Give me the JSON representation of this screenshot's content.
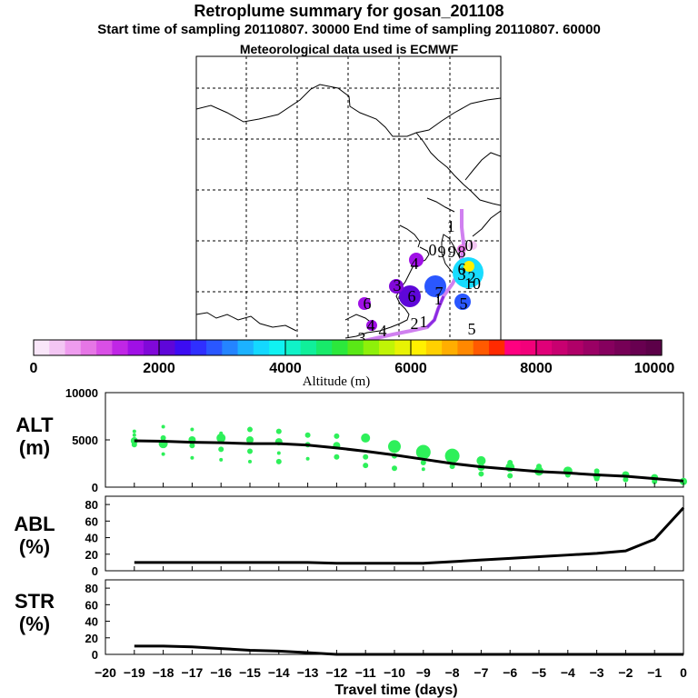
{
  "header": {
    "title": "Retroplume summary for gosan_201108",
    "line2": "Start time of sampling 20110807. 30000     End time of sampling 20110807. 60000",
    "line3": "Meteorological data used is ECMWF"
  },
  "map": {
    "cluster_labels": [
      {
        "text": "1",
        "color": "#000000"
      },
      {
        "text": "0",
        "color": "#000000"
      },
      {
        "text": "9",
        "color": "#000000"
      },
      {
        "text": "0",
        "color": "#000000"
      },
      {
        "text": "9",
        "color": "#000000"
      },
      {
        "text": "8",
        "color": "#000000"
      },
      {
        "text": "4",
        "color": "#000000"
      },
      {
        "text": "6",
        "color": "#000000"
      },
      {
        "text": "3",
        "color": "#000000"
      },
      {
        "text": "2",
        "color": "#000000"
      },
      {
        "text": "10",
        "color": "#000000"
      },
      {
        "text": "3",
        "color": "#000000"
      },
      {
        "text": "6",
        "color": "#000000"
      },
      {
        "text": "7",
        "color": "#000000"
      },
      {
        "text": "1",
        "color": "#000000"
      },
      {
        "text": "5",
        "color": "#000000"
      },
      {
        "text": "6",
        "color": "#000000"
      },
      {
        "text": "4",
        "color": "#000000"
      },
      {
        "text": "2",
        "color": "#000000"
      },
      {
        "text": "1",
        "color": "#000000"
      },
      {
        "text": "5",
        "color": "#000000"
      },
      {
        "text": "4",
        "color": "#000000"
      },
      {
        "text": "3",
        "color": "#000000"
      }
    ]
  },
  "colorbar": {
    "label": "Altitude (m)",
    "ticks": [
      "0",
      "2000",
      "4000",
      "6000",
      "8000",
      "10000"
    ],
    "colors": [
      "#f9e6f9",
      "#f3c6f3",
      "#ee9cee",
      "#e676e6",
      "#d94fe6",
      "#c026e6",
      "#a010e6",
      "#8008d9",
      "#5e06d9",
      "#3c0cf2",
      "#2f2fff",
      "#2a57ff",
      "#2484ff",
      "#1cb2ff",
      "#14d8ff",
      "#10f2f2",
      "#10f2c8",
      "#10ef9a",
      "#18ea6a",
      "#2ce83c",
      "#5ae816",
      "#8ef00a",
      "#c0f406",
      "#e8f204",
      "#fff000",
      "#ffd000",
      "#ffae00",
      "#ff8800",
      "#ff5a00",
      "#ff2a00",
      "#ff0080",
      "#f2007a",
      "#e00078",
      "#c80070",
      "#b00068",
      "#9a0064",
      "#86005e",
      "#760056",
      "#680050",
      "#5c0048"
    ]
  },
  "chart_data": [
    {
      "type": "scatter",
      "panel": "ALT",
      "ylabel": "ALT (m)",
      "xlabel": "Travel time (days)",
      "ylim": [
        0,
        10000
      ],
      "yticks": [
        "0",
        "5000",
        "10000"
      ],
      "xticks": [
        "−20",
        "−19",
        "−18",
        "−17",
        "−16",
        "−15",
        "−14",
        "−13",
        "−12",
        "−11",
        "−10",
        "−9",
        "−8",
        "−7",
        "−6",
        "−5",
        "−4",
        "−3",
        "−2",
        "−1",
        "0"
      ],
      "line_x": [
        -19,
        -18,
        -17,
        -16,
        -15,
        -14,
        -13,
        -12,
        -11,
        -10,
        -9,
        -8,
        -7,
        -6,
        -5,
        -4,
        -3,
        -2,
        -1,
        0
      ],
      "line_y": [
        4900,
        4850,
        4750,
        4700,
        4600,
        4600,
        4450,
        4150,
        3800,
        3400,
        2950,
        2500,
        2150,
        1900,
        1650,
        1500,
        1300,
        1150,
        900,
        650
      ],
      "points": [
        {
          "x": -19,
          "y": 5500,
          "s": 2
        },
        {
          "x": -19,
          "y": 4900,
          "s": 4
        },
        {
          "x": -19,
          "y": 4500,
          "s": 3
        },
        {
          "x": -19,
          "y": 5900,
          "s": 2
        },
        {
          "x": -18,
          "y": 6400,
          "s": 2
        },
        {
          "x": -18,
          "y": 5200,
          "s": 3
        },
        {
          "x": -18,
          "y": 4600,
          "s": 5
        },
        {
          "x": -18,
          "y": 3500,
          "s": 2
        },
        {
          "x": -17,
          "y": 6100,
          "s": 2
        },
        {
          "x": -17,
          "y": 5000,
          "s": 4
        },
        {
          "x": -17,
          "y": 4400,
          "s": 3
        },
        {
          "x": -17,
          "y": 3100,
          "s": 2
        },
        {
          "x": -16,
          "y": 5700,
          "s": 2
        },
        {
          "x": -16,
          "y": 5200,
          "s": 5
        },
        {
          "x": -16,
          "y": 4000,
          "s": 3
        },
        {
          "x": -16,
          "y": 2900,
          "s": 2
        },
        {
          "x": -15,
          "y": 6100,
          "s": 3
        },
        {
          "x": -15,
          "y": 5000,
          "s": 4
        },
        {
          "x": -15,
          "y": 3800,
          "s": 3
        },
        {
          "x": -15,
          "y": 2700,
          "s": 2
        },
        {
          "x": -14,
          "y": 5900,
          "s": 3
        },
        {
          "x": -14,
          "y": 4800,
          "s": 4
        },
        {
          "x": -14,
          "y": 3600,
          "s": 2
        },
        {
          "x": -14,
          "y": 2700,
          "s": 3
        },
        {
          "x": -13,
          "y": 5500,
          "s": 3
        },
        {
          "x": -13,
          "y": 4500,
          "s": 3
        },
        {
          "x": -13,
          "y": 3000,
          "s": 2
        },
        {
          "x": -12,
          "y": 5400,
          "s": 3
        },
        {
          "x": -12,
          "y": 4400,
          "s": 4
        },
        {
          "x": -12,
          "y": 3200,
          "s": 3
        },
        {
          "x": -11,
          "y": 5200,
          "s": 5
        },
        {
          "x": -11,
          "y": 3200,
          "s": 3
        },
        {
          "x": -11,
          "y": 2300,
          "s": 3
        },
        {
          "x": -10,
          "y": 4300,
          "s": 7
        },
        {
          "x": -10,
          "y": 3300,
          "s": 3
        },
        {
          "x": -10,
          "y": 2000,
          "s": 3
        },
        {
          "x": -9,
          "y": 3700,
          "s": 8
        },
        {
          "x": -9,
          "y": 2600,
          "s": 3
        },
        {
          "x": -9,
          "y": 1900,
          "s": 2
        },
        {
          "x": -8,
          "y": 3300,
          "s": 8
        },
        {
          "x": -8,
          "y": 2200,
          "s": 3
        },
        {
          "x": -7,
          "y": 2800,
          "s": 5
        },
        {
          "x": -7,
          "y": 2100,
          "s": 4
        },
        {
          "x": -7,
          "y": 1400,
          "s": 3
        },
        {
          "x": -6,
          "y": 2600,
          "s": 3
        },
        {
          "x": -6,
          "y": 2100,
          "s": 5
        },
        {
          "x": -6,
          "y": 1200,
          "s": 3
        },
        {
          "x": -5,
          "y": 2200,
          "s": 3
        },
        {
          "x": -5,
          "y": 1700,
          "s": 5
        },
        {
          "x": -4,
          "y": 1700,
          "s": 5
        },
        {
          "x": -4,
          "y": 1300,
          "s": 3
        },
        {
          "x": -3,
          "y": 1700,
          "s": 3
        },
        {
          "x": -3,
          "y": 1200,
          "s": 4
        },
        {
          "x": -3,
          "y": 900,
          "s": 3
        },
        {
          "x": -2,
          "y": 1300,
          "s": 4
        },
        {
          "x": -2,
          "y": 800,
          "s": 3
        },
        {
          "x": -1,
          "y": 1000,
          "s": 4
        },
        {
          "x": -1,
          "y": 600,
          "s": 3
        },
        {
          "x": 0,
          "y": 600,
          "s": 4
        }
      ]
    },
    {
      "type": "line",
      "panel": "ABL",
      "ylabel": "ABL (%)",
      "ylim": [
        0,
        90
      ],
      "yticks": [
        "0",
        "20",
        "40",
        "60",
        "80"
      ],
      "x": [
        -19,
        -18,
        -17,
        -16,
        -15,
        -14,
        -13,
        -12,
        -11,
        -10,
        -9,
        -8,
        -7,
        -6,
        -5,
        -4,
        -3,
        -2,
        -1,
        0
      ],
      "values": [
        10,
        10,
        10,
        10,
        10,
        10,
        10,
        9,
        9,
        9,
        9,
        11,
        13,
        15,
        17,
        19,
        21,
        24,
        38,
        76
      ]
    },
    {
      "type": "line",
      "panel": "STR",
      "ylabel": "STR (%)",
      "ylim": [
        0,
        90
      ],
      "yticks": [
        "0",
        "20",
        "40",
        "60",
        "80"
      ],
      "x": [
        -19,
        -18,
        -17,
        -16,
        -15,
        -14,
        -13,
        -12,
        -11,
        -10,
        -9,
        -8,
        -7,
        -6,
        -5,
        -4,
        -3,
        -2,
        -1,
        0
      ],
      "values": [
        10,
        10,
        9,
        7,
        5,
        4,
        2,
        0,
        0,
        0,
        0,
        0,
        0,
        0,
        0,
        0,
        0,
        0,
        0,
        0
      ]
    }
  ]
}
